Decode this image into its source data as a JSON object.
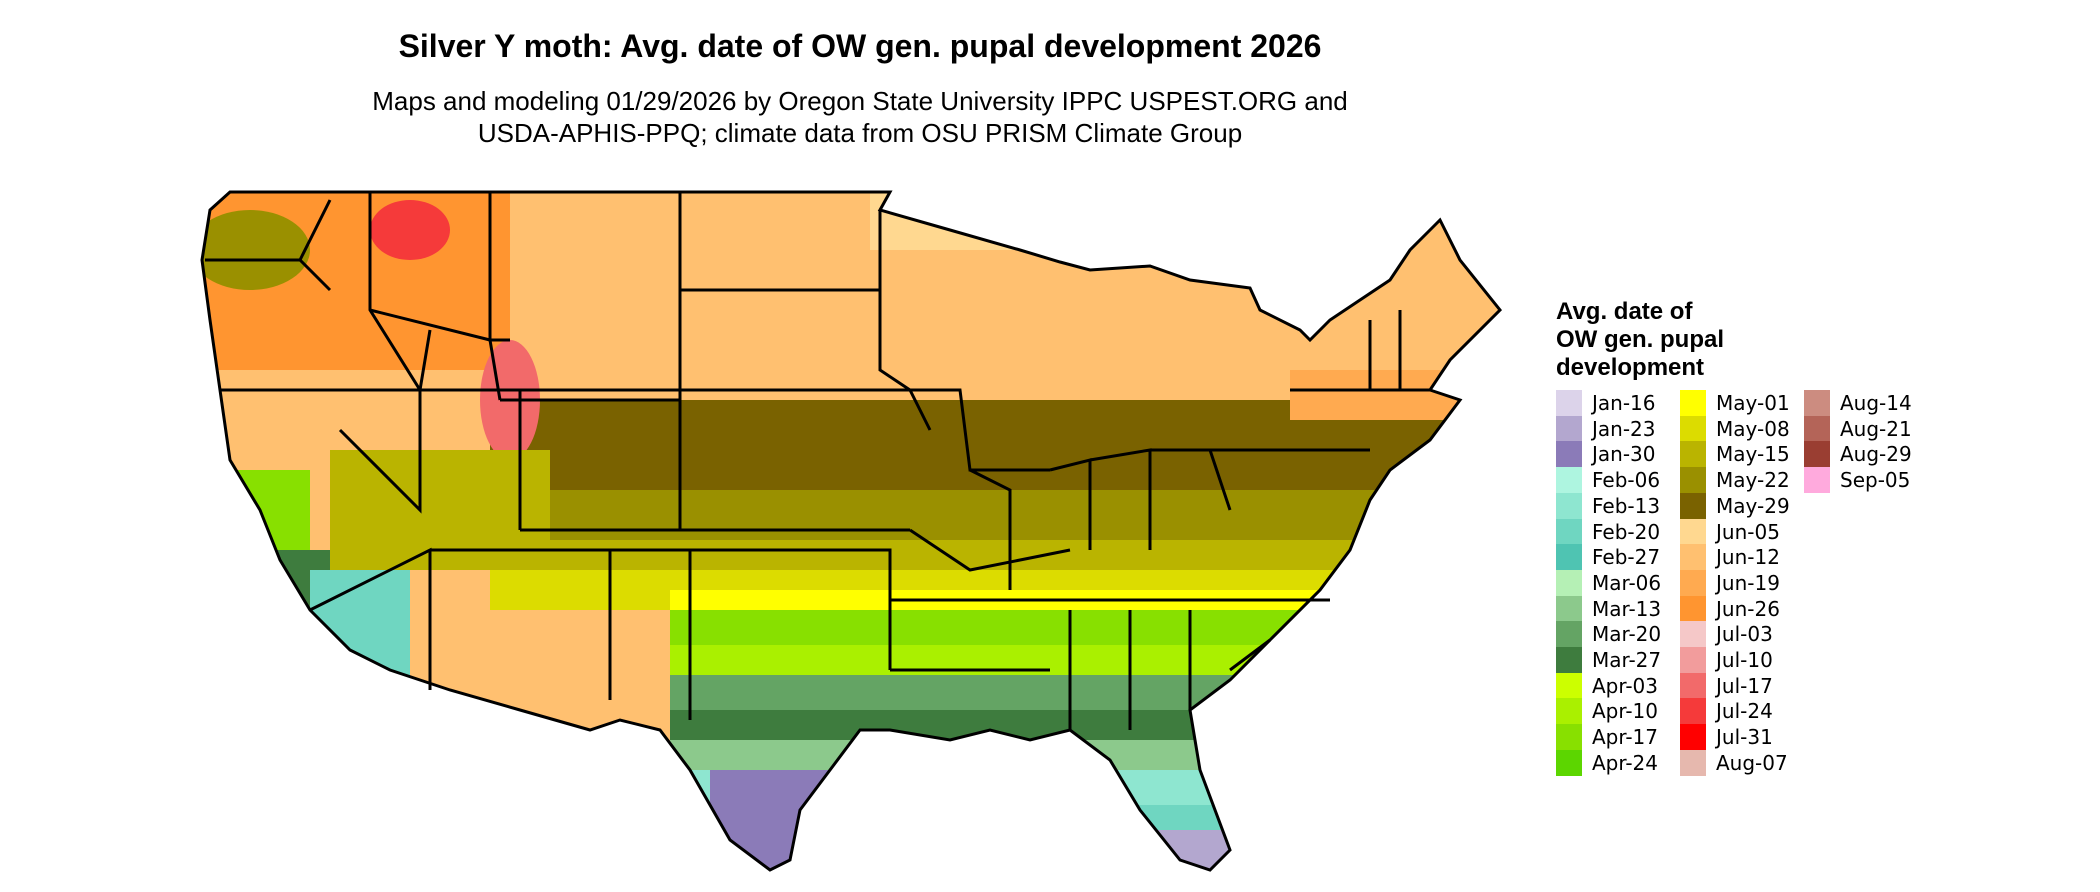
{
  "title": "Silver Y moth: Avg. date of OW gen. pupal development 2026",
  "subtitle_line1": "Maps and modeling 01/29/2026 by Oregon State University IPPC USPEST.ORG and",
  "subtitle_line2": "USDA-APHIS-PPQ; climate data from OSU PRISM Climate Group",
  "legend": {
    "title_line1": "Avg. date of",
    "title_line2": "OW gen. pupal",
    "title_line3": "development",
    "items": [
      {
        "label": "Jan-16",
        "color": "#dcd3ea"
      },
      {
        "label": "Jan-23",
        "color": "#b3a7cf"
      },
      {
        "label": "Jan-30",
        "color": "#8b7bb8"
      },
      {
        "label": "Feb-06",
        "color": "#aef5e0"
      },
      {
        "label": "Feb-13",
        "color": "#8ee6d0"
      },
      {
        "label": "Feb-20",
        "color": "#6fd6c1"
      },
      {
        "label": "Feb-27",
        "color": "#4fc4b2"
      },
      {
        "label": "Mar-06",
        "color": "#b5f0b5"
      },
      {
        "label": "Mar-13",
        "color": "#8cc98c"
      },
      {
        "label": "Mar-20",
        "color": "#64a464"
      },
      {
        "label": "Mar-27",
        "color": "#3e7c3e"
      },
      {
        "label": "Apr-03",
        "color": "#ccff00"
      },
      {
        "label": "Apr-10",
        "color": "#aaf000"
      },
      {
        "label": "Apr-17",
        "color": "#88e000"
      },
      {
        "label": "Apr-24",
        "color": "#5cd600"
      },
      {
        "label": "May-01",
        "color": "#ffff00"
      },
      {
        "label": "May-08",
        "color": "#dcdc00"
      },
      {
        "label": "May-15",
        "color": "#bab400"
      },
      {
        "label": "May-22",
        "color": "#9a9000"
      },
      {
        "label": "May-29",
        "color": "#7a6200"
      },
      {
        "label": "Jun-05",
        "color": "#ffd890"
      },
      {
        "label": "Jun-12",
        "color": "#ffc070"
      },
      {
        "label": "Jun-19",
        "color": "#ffaa50"
      },
      {
        "label": "Jun-26",
        "color": "#ff9530"
      },
      {
        "label": "Jul-03",
        "color": "#f5c8c8"
      },
      {
        "label": "Jul-10",
        "color": "#f29c9c"
      },
      {
        "label": "Jul-17",
        "color": "#f26a6a"
      },
      {
        "label": "Jul-24",
        "color": "#f53a3a"
      },
      {
        "label": "Jul-31",
        "color": "#ff0000"
      },
      {
        "label": "Aug-07",
        "color": "#e6b8ae"
      },
      {
        "label": "Aug-14",
        "color": "#cc8c80"
      },
      {
        "label": "Aug-21",
        "color": "#b46458"
      },
      {
        "label": "Aug-29",
        "color": "#9a3e32"
      },
      {
        "label": "Sep-05",
        "color": "#ffaadd"
      }
    ]
  }
}
